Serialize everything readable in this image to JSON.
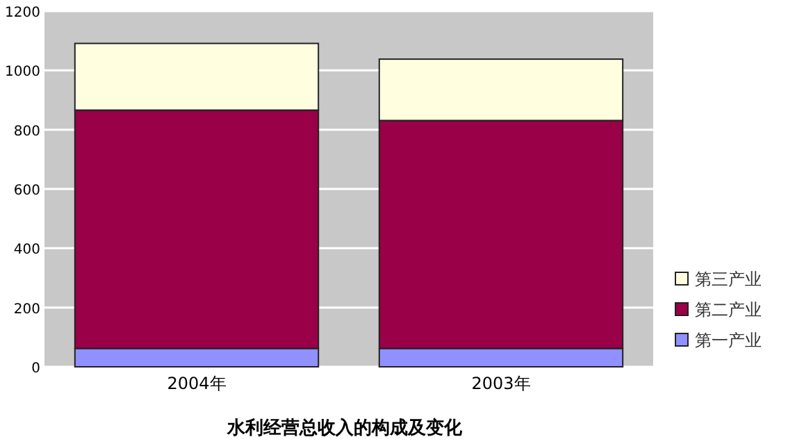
{
  "chart_data": {
    "type": "bar",
    "stacked": true,
    "title": "水利经营总收入的构成及变化",
    "categories": [
      "2004年",
      "2003年"
    ],
    "series": [
      {
        "name": "第一产业",
        "color": "#9090ff",
        "values": [
          62,
          62
        ]
      },
      {
        "name": "第二产业",
        "color": "#990048",
        "values": [
          804,
          769
        ]
      },
      {
        "name": "第三产业",
        "color": "#ffffe0",
        "values": [
          225,
          207
        ]
      }
    ],
    "ylim": [
      0,
      1200
    ],
    "yticks": [
      0,
      200,
      400,
      600,
      800,
      1000,
      1200
    ],
    "grid": "y",
    "legend": "right"
  }
}
